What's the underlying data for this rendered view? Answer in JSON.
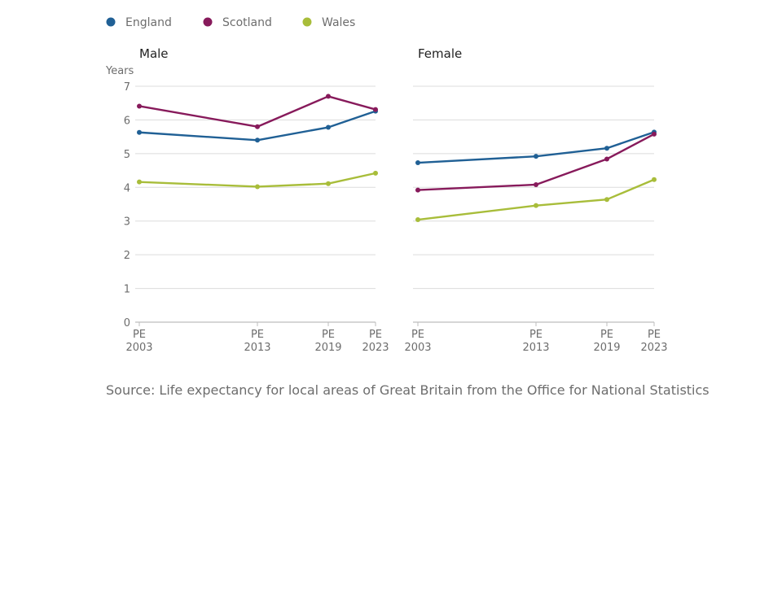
{
  "chart_data": {
    "type": "line",
    "legend": {
      "placement": "top-left",
      "entries": [
        {
          "name": "England",
          "color": "#206095"
        },
        {
          "name": "Scotland",
          "color": "#871A5B"
        },
        {
          "name": "Wales",
          "color": "#A8BD3A"
        }
      ]
    },
    "ylabel": "Years",
    "ylim": [
      0,
      7
    ],
    "yticks": [
      0,
      1,
      2,
      3,
      4,
      5,
      6,
      7
    ],
    "grid": true,
    "x_categories": [
      {
        "line1": "PE",
        "line2": "2003",
        "year": 2003
      },
      {
        "line1": "PE",
        "line2": "2013",
        "year": 2013
      },
      {
        "line1": "PE",
        "line2": "2019",
        "year": 2019
      },
      {
        "line1": "PE",
        "line2": "2023",
        "year": 2023
      }
    ],
    "panels": [
      {
        "title": "Male",
        "series": [
          {
            "name": "England",
            "values": [
              5.63,
              5.4,
              5.78,
              6.26
            ]
          },
          {
            "name": "Scotland",
            "values": [
              6.41,
              5.8,
              6.7,
              6.31
            ]
          },
          {
            "name": "Wales",
            "values": [
              4.16,
              4.02,
              4.11,
              4.42
            ]
          }
        ]
      },
      {
        "title": "Female",
        "series": [
          {
            "name": "England",
            "values": [
              4.73,
              4.92,
              5.16,
              5.64
            ]
          },
          {
            "name": "Scotland",
            "values": [
              3.92,
              4.08,
              4.84,
              5.58
            ]
          },
          {
            "name": "Wales",
            "values": [
              3.04,
              3.46,
              3.64,
              4.23
            ]
          }
        ]
      }
    ]
  },
  "source": "Source: Life expectancy for local areas of Great Britain from the Office for National Statistics"
}
